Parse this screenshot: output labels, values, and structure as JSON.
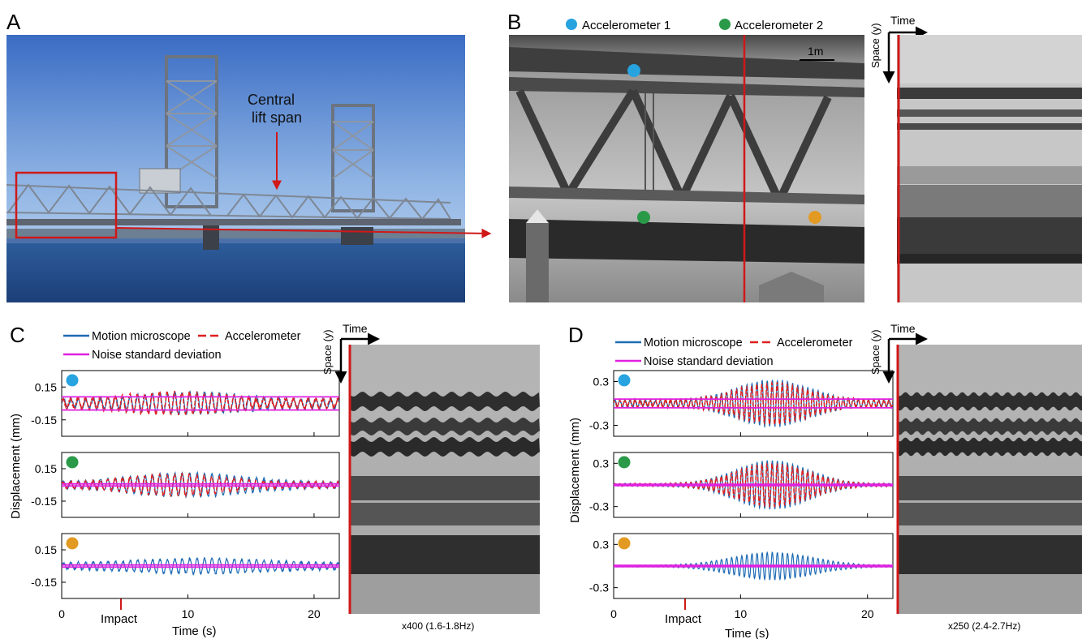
{
  "panels": {
    "A": {
      "letter": "A",
      "annotation_line1": "Central",
      "annotation_line2": "lift span"
    },
    "B": {
      "letter": "B",
      "legend": [
        {
          "label": "Accelerometer 1",
          "color": "#27a3e0"
        },
        {
          "label": "Accelerometer 2",
          "color": "#2a9a48"
        }
      ],
      "third_marker_color": "#e39a22",
      "scale_bar": "1m",
      "axis_time": "Time",
      "axis_space": "Space (y)"
    },
    "C": {
      "letter": "C",
      "legend": {
        "motion": "Motion microscope",
        "accel": "Accelerometer",
        "noise": "Noise standard deviation"
      },
      "ylabel": "Displacement (mm)",
      "xlabel": "Time (s)",
      "impact": "Impact",
      "slice_caption": "x400 (1.6-1.8Hz)",
      "axis_time": "Time",
      "axis_space": "Space (y)"
    },
    "D": {
      "letter": "D",
      "legend": {
        "motion": "Motion microscope",
        "accel": "Accelerometer",
        "noise": "Noise standard deviation"
      },
      "ylabel": "Displacement (mm)",
      "xlabel": "Time (s)",
      "impact": "Impact",
      "slice_caption": "x250 (2.4-2.7Hz)",
      "axis_time": "Time",
      "axis_space": "Space (y)"
    }
  },
  "colors": {
    "motion": "#1f6bb5",
    "accel": "#e02020",
    "noise": "#e020e0",
    "marker_line": "#d01818",
    "acc1": "#27a3e0",
    "acc2": "#2a9a48",
    "acc3": "#e39a22"
  },
  "chart_data": [
    {
      "type": "line",
      "panel": "C",
      "xlabel": "Time (s)",
      "ylabel": "Displacement (mm)",
      "xlim": [
        0,
        22
      ],
      "xticks": [
        0,
        10,
        20
      ],
      "subplots": [
        {
          "marker": "acc1",
          "ylim": [
            -0.3,
            0.3
          ],
          "yticks": [
            0.15,
            -0.15
          ],
          "ytick_labels": [
            "0.15",
            "-0.15"
          ],
          "series": [
            {
              "name": "Motion microscope",
              "model": {
                "f": 1.7,
                "base": 0.04,
                "peak": 0.1,
                "center": 10,
                "width": 5
              }
            },
            {
              "name": "Accelerometer",
              "model": {
                "f": 1.7,
                "base": 0.04,
                "peak": 0.1,
                "center": 9,
                "width": 5,
                "until": 12
              }
            }
          ],
          "noise_band": [
            -0.06,
            0.06
          ]
        },
        {
          "marker": "acc2",
          "ylim": [
            -0.3,
            0.3
          ],
          "yticks": [
            0.15,
            -0.15
          ],
          "ytick_labels": [
            "0.15",
            "-0.15"
          ],
          "series": [
            {
              "name": "Motion microscope",
              "model": {
                "f": 1.7,
                "base": 0.025,
                "peak": 0.11,
                "center": 10,
                "width": 6
              }
            },
            {
              "name": "Accelerometer",
              "model": {
                "f": 1.7,
                "base": 0.025,
                "peak": 0.1,
                "center": 9,
                "width": 5,
                "until": 14
              }
            }
          ],
          "noise_band": [
            -0.01,
            0.01
          ]
        },
        {
          "marker": "acc3",
          "ylim": [
            -0.3,
            0.3
          ],
          "yticks": [
            0.15,
            -0.15
          ],
          "ytick_labels": [
            "0.15",
            "-0.15"
          ],
          "series": [
            {
              "name": "Motion microscope",
              "model": {
                "f": 1.7,
                "base": 0.025,
                "peak": 0.07,
                "center": 11,
                "width": 7
              }
            }
          ],
          "noise_band": [
            -0.01,
            0.01
          ]
        }
      ],
      "impact_time": 5
    },
    {
      "type": "line",
      "panel": "D",
      "xlabel": "Time (s)",
      "ylabel": "Displacement (mm)",
      "xlim": [
        0,
        22
      ],
      "xticks": [
        0,
        10,
        20
      ],
      "subplots": [
        {
          "marker": "acc1",
          "ylim": [
            -0.45,
            0.45
          ],
          "yticks": [
            0.3,
            -0.3
          ],
          "ytick_labels": [
            "0.3",
            "-0.3"
          ],
          "series": [
            {
              "name": "Motion microscope",
              "model": {
                "f": 2.5,
                "base": 0.04,
                "peak": 0.32,
                "center": 12.5,
                "width": 4
              }
            },
            {
              "name": "Accelerometer",
              "model": {
                "f": 2.5,
                "base": 0.04,
                "peak": 0.28,
                "center": 12.5,
                "width": 4
              }
            }
          ],
          "noise_band": [
            -0.06,
            0.06
          ]
        },
        {
          "marker": "acc2",
          "ylim": [
            -0.45,
            0.45
          ],
          "yticks": [
            0.3,
            -0.3
          ],
          "ytick_labels": [
            "0.3",
            "-0.3"
          ],
          "series": [
            {
              "name": "Motion microscope",
              "model": {
                "f": 2.5,
                "base": 0.015,
                "peak": 0.34,
                "center": 12.5,
                "width": 4
              }
            },
            {
              "name": "Accelerometer",
              "model": {
                "f": 2.5,
                "base": 0.015,
                "peak": 0.3,
                "center": 12.5,
                "width": 4
              }
            }
          ],
          "noise_band": [
            -0.01,
            0.01
          ]
        },
        {
          "marker": "acc3",
          "ylim": [
            -0.45,
            0.45
          ],
          "yticks": [
            0.3,
            -0.3
          ],
          "ytick_labels": [
            "0.3",
            "-0.3"
          ],
          "series": [
            {
              "name": "Motion microscope",
              "model": {
                "f": 2.5,
                "base": 0.01,
                "peak": 0.19,
                "center": 12.5,
                "width": 4.5
              }
            }
          ],
          "noise_band": [
            -0.01,
            0.01
          ]
        }
      ],
      "impact_time": 6
    }
  ]
}
